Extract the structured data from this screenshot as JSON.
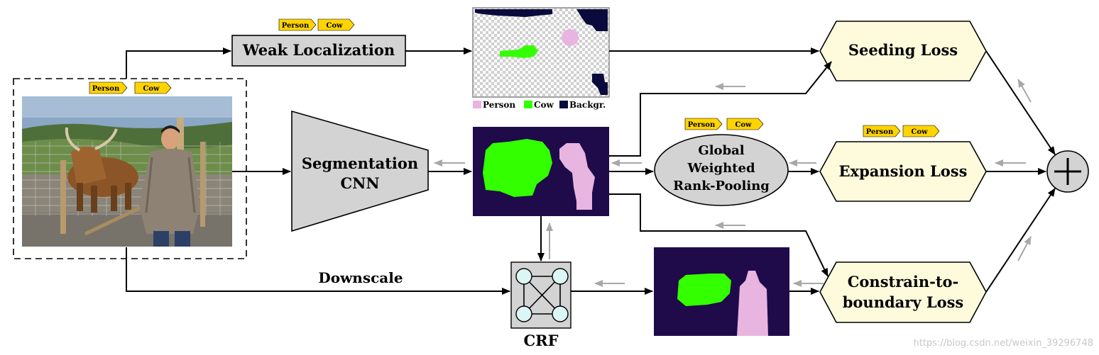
{
  "tags": {
    "person": "Person",
    "cow": "Cow"
  },
  "boxes": {
    "weak_localization": "Weak Localization",
    "segmentation_line1": "Segmentation",
    "segmentation_line2": "CNN",
    "pool_line1": "Global",
    "pool_line2": "Weighted",
    "pool_line3": "Rank-Pooling",
    "seeding_loss": "Seeding Loss",
    "expansion_loss": "Expansion Loss",
    "constrain_line1": "Constrain-to-",
    "constrain_line2": "boundary Loss",
    "crf": "CRF",
    "downscale": "Downscale",
    "plus": "+"
  },
  "legend": {
    "person": "Person",
    "cow": "Cow",
    "background": "Backgr."
  },
  "watermark": "https://blog.csdn.net/weixin_39296748",
  "colors": {
    "tag_fill": "#ffd400",
    "loss_fill": "#fefbdc",
    "grey_fill": "#d3d3d3",
    "seg_bg": "#1f0a4a",
    "cow_green": "#33ff00",
    "person_pink": "#e8b4e0",
    "seed_bg": "#0a0a3c",
    "grad_arrow": "#a8a8a8"
  },
  "icons": [
    "crf-graph-icon",
    "plus-icon",
    "photo-cow-person"
  ]
}
